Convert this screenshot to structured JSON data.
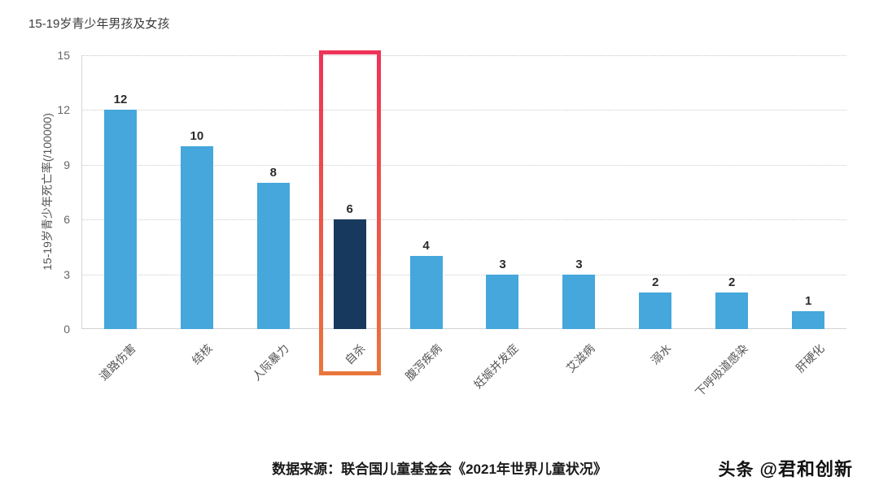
{
  "chart_data": {
    "type": "bar",
    "title": "15-19岁青少年男孩及女孩",
    "xlabel": "",
    "ylabel": "15-19岁青少年死亡率(/100000)",
    "categories": [
      "道路伤害",
      "结核",
      "人际暴力",
      "自杀",
      "腹泻疾病",
      "妊娠并发症",
      "艾滋病",
      "溺水",
      "下呼吸道感染",
      "肝硬化"
    ],
    "values": [
      12,
      10,
      8,
      6,
      4,
      3,
      3,
      2,
      2,
      1
    ],
    "ylim": [
      0,
      15
    ],
    "yticks": [
      0,
      3,
      6,
      9,
      12,
      15
    ],
    "grid": "horizontal-dotted",
    "legend": "none",
    "highlight": {
      "index": 3,
      "category": "自杀",
      "note": "dark bar outlined with red-orange box"
    },
    "colors": {
      "bar": "#45a7db",
      "highlight_bar": "#17395e",
      "highlight_box_top": "#ee3358",
      "highlight_box_bottom": "#e9763d"
    }
  },
  "footer": {
    "source": "数据来源：联合国儿童基金会《2021年世界儿童状况》"
  },
  "watermark": {
    "brand": "头条",
    "handle": "@君和创新"
  }
}
